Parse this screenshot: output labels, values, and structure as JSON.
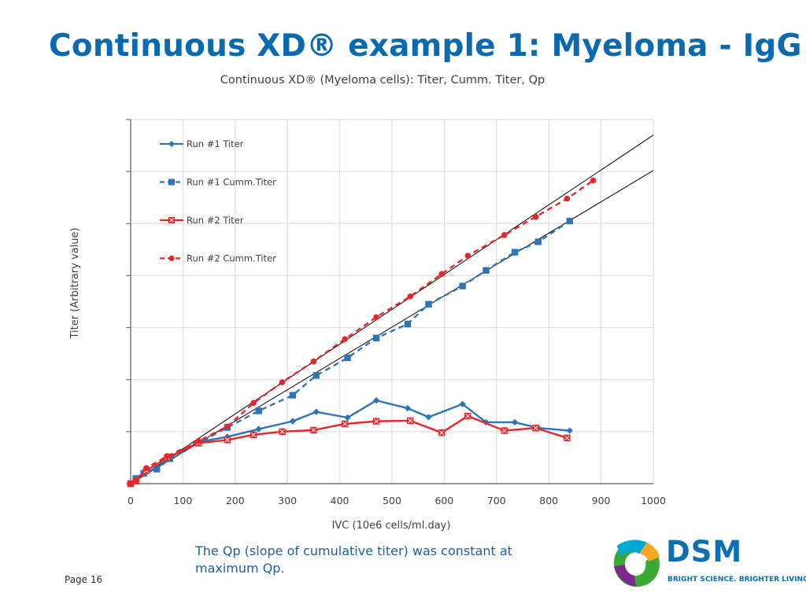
{
  "slide": {
    "title": "Continuous XD® example 1: Myeloma - IgG",
    "caption": "The Qp (slope of cumulative titer) was constant at maximum Qp.",
    "page_label": "Page 16"
  },
  "brand": {
    "name": "DSM",
    "tagline": "BRIGHT SCIENCE. BRIGHTER LIVING.",
    "colors": {
      "blue": "#0b6fb3",
      "green": "#3aa935",
      "cyan": "#00a9d4",
      "orange": "#f5a623",
      "purple": "#7b2a8c"
    }
  },
  "chart_data": {
    "type": "line",
    "title": "Continuous XD® (Myeloma cells): Titer, Cumm. Titer, Qp",
    "xlabel": "IVC (10e6 cells/ml.day)",
    "ylabel": "Titer (Arbitrary value)",
    "xlim": [
      0,
      1000
    ],
    "ylim": [
      0,
      7
    ],
    "x_ticks": [
      "0",
      "100",
      "200",
      "300",
      "400",
      "500",
      "600",
      "700",
      "800",
      "900",
      "1000"
    ],
    "grid": true,
    "legend_position": "top-left",
    "series": [
      {
        "name": "Run #1 Titer",
        "color": "#2e75b6",
        "style": "solid",
        "marker": "diamond",
        "x": [
          0,
          10,
          25,
          50,
          75,
          130,
          185,
          245,
          310,
          355,
          415,
          470,
          530,
          570,
          635,
          680,
          735,
          780,
          840
        ],
        "y": [
          0,
          0.1,
          0.2,
          0.3,
          0.5,
          0.8,
          0.9,
          1.05,
          1.2,
          1.38,
          1.27,
          1.6,
          1.45,
          1.28,
          1.53,
          1.18,
          1.18,
          1.07,
          1.02
        ]
      },
      {
        "name": "Run #1 Cumm.Titer",
        "color": "#2e75b6",
        "style": "dashed",
        "marker": "square",
        "x": [
          0,
          10,
          25,
          50,
          75,
          130,
          185,
          245,
          310,
          355,
          415,
          470,
          530,
          570,
          635,
          680,
          735,
          780,
          840
        ],
        "y": [
          0,
          0.1,
          0.2,
          0.28,
          0.48,
          0.78,
          1.08,
          1.4,
          1.7,
          2.08,
          2.42,
          2.8,
          3.07,
          3.45,
          3.8,
          4.1,
          4.45,
          4.65,
          5.05
        ]
      },
      {
        "name": "Run #2 Titer",
        "color": "#e8262a",
        "style": "solid",
        "marker": "square-x",
        "x": [
          0,
          10,
          30,
          70,
          130,
          185,
          235,
          290,
          350,
          410,
          470,
          535,
          595,
          645,
          715,
          775,
          835
        ],
        "y": [
          0,
          0.05,
          0.25,
          0.5,
          0.78,
          0.84,
          0.94,
          1.0,
          1.03,
          1.15,
          1.2,
          1.21,
          0.98,
          1.3,
          1.02,
          1.07,
          0.88
        ]
      },
      {
        "name": "Run #2 Cumm.Titer",
        "color": "#e8262a",
        "style": "dashed",
        "marker": "circle",
        "x": [
          0,
          10,
          30,
          70,
          130,
          185,
          235,
          290,
          350,
          410,
          470,
          535,
          595,
          645,
          715,
          775,
          835,
          885
        ],
        "y": [
          0,
          0.05,
          0.3,
          0.53,
          0.82,
          1.1,
          1.55,
          1.95,
          2.35,
          2.78,
          3.2,
          3.6,
          4.03,
          4.38,
          4.78,
          5.13,
          5.48,
          5.83
        ]
      }
    ],
    "reference_lines": [
      {
        "color": "#000000",
        "from": [
          0,
          0
        ],
        "to": [
          1000,
          6.7
        ]
      },
      {
        "color": "#000000",
        "from": [
          0,
          0
        ],
        "to": [
          1000,
          6.02
        ]
      }
    ]
  }
}
